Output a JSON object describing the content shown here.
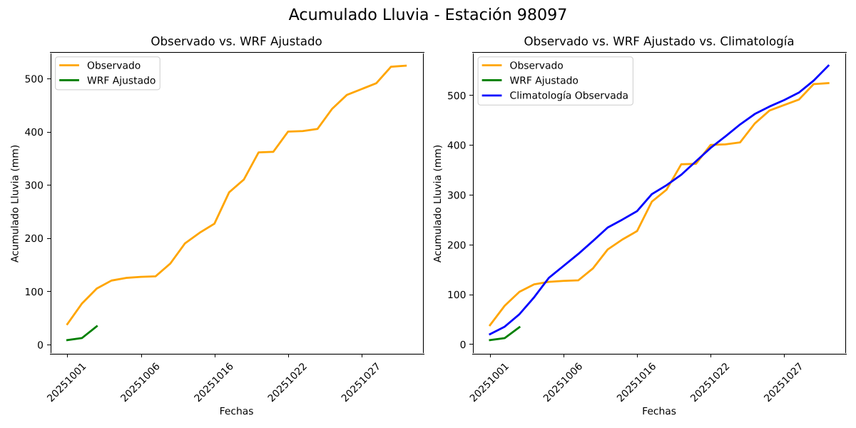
{
  "figure": {
    "suptitle": "Acumulado Lluvia - Estación 98097",
    "background_color": "#ffffff",
    "text_color": "#000000",
    "axes_edge_color": "#000000",
    "legend_edge_color": "#cccccc"
  },
  "chart_data": [
    {
      "type": "line",
      "title": "Observado vs. WRF Ajustado",
      "xlabel": "Fechas",
      "ylabel": "Acumulado Lluvia (mm)",
      "x_tick_positions": [
        0,
        5,
        10,
        15,
        20
      ],
      "x_tick_labels": [
        "20251001",
        "20251006",
        "20251016",
        "20251022",
        "20251027"
      ],
      "x_tick_rotation": 45,
      "y_ticks": [
        0,
        100,
        200,
        300,
        400,
        500
      ],
      "xlim": [
        -1.15,
        24.15
      ],
      "ylim": [
        -17.8,
        549.8
      ],
      "grid": false,
      "legend_loc": "upper left",
      "series": [
        {
          "name": "Observado",
          "color": "#FFA500",
          "x": [
            0,
            1,
            2,
            3,
            4,
            5,
            6,
            7,
            8,
            9,
            10,
            11,
            12,
            13,
            14,
            15,
            16,
            17,
            18,
            19,
            20,
            21,
            22,
            23
          ],
          "values": [
            38,
            77,
            105,
            120,
            125,
            127,
            128,
            152,
            190,
            210,
            227,
            286,
            310,
            361,
            362,
            400,
            401,
            405,
            443,
            469,
            480,
            491,
            522,
            524
          ]
        },
        {
          "name": "WRF Ajustado",
          "color": "#008000",
          "x": [
            0,
            1,
            2
          ],
          "values": [
            8,
            12,
            34
          ]
        }
      ]
    },
    {
      "type": "line",
      "title": "Observado vs. WRF Ajustado vs. Climatología",
      "xlabel": "Fechas",
      "ylabel": "Acumulado Lluvia (mm)",
      "x_tick_positions": [
        0,
        5,
        10,
        15,
        20
      ],
      "x_tick_labels": [
        "20251001",
        "20251006",
        "20251016",
        "20251022",
        "20251027"
      ],
      "x_tick_rotation": 45,
      "y_ticks": [
        0,
        100,
        200,
        300,
        400,
        500
      ],
      "xlim": [
        -1.15,
        24.15
      ],
      "ylim": [
        -19.55,
        586.55
      ],
      "grid": false,
      "legend_loc": "upper left",
      "series": [
        {
          "name": "Observado",
          "color": "#FFA500",
          "x": [
            0,
            1,
            2,
            3,
            4,
            5,
            6,
            7,
            8,
            9,
            10,
            11,
            12,
            13,
            14,
            15,
            16,
            17,
            18,
            19,
            20,
            21,
            22,
            23
          ],
          "values": [
            38,
            77,
            105,
            120,
            125,
            127,
            128,
            152,
            190,
            210,
            227,
            286,
            310,
            361,
            362,
            400,
            401,
            405,
            443,
            469,
            480,
            491,
            522,
            524
          ]
        },
        {
          "name": "WRF Ajustado",
          "color": "#008000",
          "x": [
            0,
            1,
            2
          ],
          "values": [
            8,
            12,
            34
          ]
        },
        {
          "name": "Climatología Observada",
          "color": "#0000FF",
          "x": [
            0,
            1,
            2,
            3,
            4,
            5,
            6,
            7,
            8,
            9,
            10,
            11,
            12,
            13,
            14,
            15,
            16,
            17,
            18,
            19,
            20,
            21,
            22,
            23
          ],
          "values": [
            20,
            35,
            60,
            94,
            133,
            157,
            181,
            207,
            234,
            250,
            267,
            301,
            319,
            340,
            367,
            394,
            417,
            441,
            462,
            477,
            490,
            505,
            529,
            559
          ]
        }
      ]
    }
  ]
}
